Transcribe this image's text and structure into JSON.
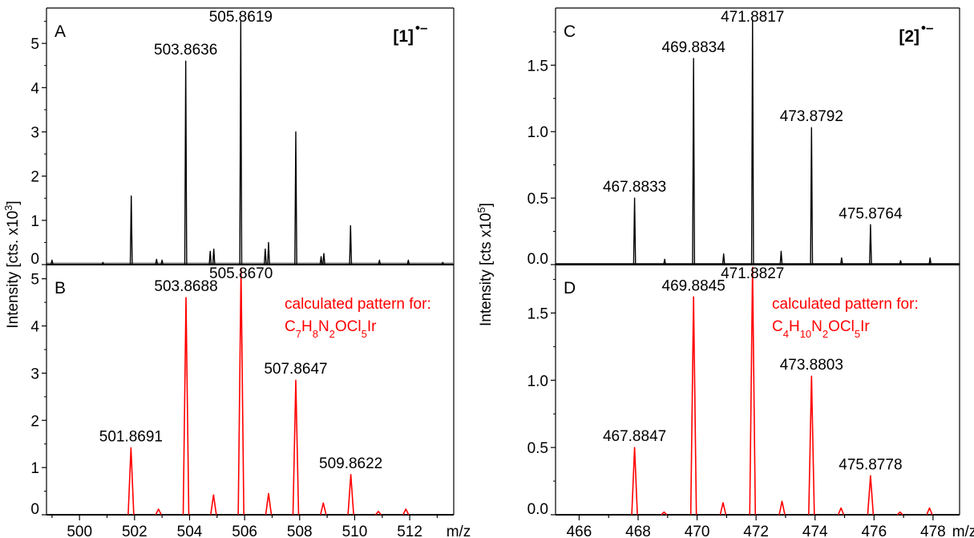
{
  "chart_data": [
    {
      "panel": "A",
      "type": "line",
      "color": "#000000",
      "ylabel_shared": "Intensity [cts. x10",
      "ylabel_exp": "3",
      "ylabel_close": "]",
      "ylim": [
        0,
        5.8
      ],
      "yticks": [
        "0",
        "1",
        "2",
        "3",
        "4",
        "5"
      ],
      "xlim": [
        498.8,
        513.6
      ],
      "species_label": "[1]",
      "species_sup": "•–",
      "peaks": [
        {
          "x": 499.0,
          "y": 0.1
        },
        {
          "x": 500.85,
          "y": 0.05
        },
        {
          "x": 501.88,
          "y": 1.55
        },
        {
          "x": 502.8,
          "y": 0.12
        },
        {
          "x": 503.0,
          "y": 0.1
        },
        {
          "x": 503.86,
          "y": 4.6
        },
        {
          "x": 504.75,
          "y": 0.3
        },
        {
          "x": 504.88,
          "y": 0.35
        },
        {
          "x": 505.86,
          "y": 5.5
        },
        {
          "x": 506.75,
          "y": 0.35
        },
        {
          "x": 506.87,
          "y": 0.5
        },
        {
          "x": 507.86,
          "y": 3.0
        },
        {
          "x": 508.78,
          "y": 0.18
        },
        {
          "x": 508.88,
          "y": 0.25
        },
        {
          "x": 509.85,
          "y": 0.88
        },
        {
          "x": 510.9,
          "y": 0.1
        },
        {
          "x": 511.95,
          "y": 0.1
        },
        {
          "x": 513.2,
          "y": 0.05
        }
      ],
      "labels": [
        {
          "x": 503.86,
          "y": 4.6,
          "text": "503.8636"
        },
        {
          "x": 505.86,
          "y": 5.5,
          "text": "505.8619"
        }
      ]
    },
    {
      "panel": "B",
      "type": "line",
      "color": "#ff0000",
      "ylim": [
        0,
        5.3
      ],
      "yticks": [
        "0",
        "1",
        "2",
        "3",
        "4",
        "5"
      ],
      "xlim": [
        498.8,
        513.6
      ],
      "xticks": [
        "500",
        "502",
        "504",
        "506",
        "508",
        "510",
        "512"
      ],
      "xunit": "m/z",
      "annotation_line1": "calculated pattern for:",
      "formula": [
        {
          "t": "C"
        },
        {
          "t": "7",
          "sub": true
        },
        {
          "t": "H"
        },
        {
          "t": "8",
          "sub": true
        },
        {
          "t": "N"
        },
        {
          "t": "2",
          "sub": true
        },
        {
          "t": "OCl"
        },
        {
          "t": "5",
          "sub": true
        },
        {
          "t": "Ir"
        }
      ],
      "peaks": [
        {
          "x": 501.87,
          "y": 1.42
        },
        {
          "x": 502.87,
          "y": 0.12
        },
        {
          "x": 503.87,
          "y": 4.6
        },
        {
          "x": 504.87,
          "y": 0.42
        },
        {
          "x": 505.87,
          "y": 5.22
        },
        {
          "x": 506.87,
          "y": 0.45
        },
        {
          "x": 507.86,
          "y": 2.85
        },
        {
          "x": 508.86,
          "y": 0.25
        },
        {
          "x": 509.86,
          "y": 0.85
        },
        {
          "x": 510.86,
          "y": 0.07
        },
        {
          "x": 511.86,
          "y": 0.12
        }
      ],
      "labels": [
        {
          "x": 501.87,
          "y": 1.42,
          "text": "501.8691"
        },
        {
          "x": 503.87,
          "y": 4.6,
          "text": "503.8688"
        },
        {
          "x": 505.87,
          "y": 5.22,
          "text": "505.8670"
        },
        {
          "x": 507.86,
          "y": 2.85,
          "text": "507.8647"
        },
        {
          "x": 509.86,
          "y": 0.85,
          "text": "509.8622"
        }
      ]
    },
    {
      "panel": "C",
      "type": "line",
      "color": "#000000",
      "ylabel_shared": "Intensity [cts x10",
      "ylabel_exp": "5",
      "ylabel_close": "]",
      "ylim": [
        0,
        1.93
      ],
      "yticks": [
        "0.0",
        "0.5",
        "1.0",
        "1.5"
      ],
      "xlim": [
        465.2,
        478.9
      ],
      "species_label": "[2]",
      "species_sup": "•–",
      "peaks": [
        {
          "x": 467.88,
          "y": 0.5
        },
        {
          "x": 468.9,
          "y": 0.04
        },
        {
          "x": 469.88,
          "y": 1.55
        },
        {
          "x": 470.9,
          "y": 0.08
        },
        {
          "x": 471.88,
          "y": 1.84
        },
        {
          "x": 472.85,
          "y": 0.1
        },
        {
          "x": 473.88,
          "y": 1.03
        },
        {
          "x": 474.9,
          "y": 0.05
        },
        {
          "x": 475.88,
          "y": 0.3
        },
        {
          "x": 476.9,
          "y": 0.03
        },
        {
          "x": 477.9,
          "y": 0.05
        }
      ],
      "labels": [
        {
          "x": 467.88,
          "y": 0.5,
          "text": "467.8833"
        },
        {
          "x": 469.88,
          "y": 1.55,
          "text": "469.8834"
        },
        {
          "x": 471.88,
          "y": 1.84,
          "text": "471.8817"
        },
        {
          "x": 473.88,
          "y": 1.03,
          "text": "473.8792"
        },
        {
          "x": 475.88,
          "y": 0.3,
          "text": "475.8764"
        }
      ]
    },
    {
      "panel": "D",
      "type": "line",
      "color": "#ff0000",
      "ylim": [
        0,
        1.86
      ],
      "yticks": [
        "0.0",
        "0.5",
        "1.0",
        "1.5"
      ],
      "xlim": [
        465.2,
        478.9
      ],
      "xticks": [
        "466",
        "468",
        "470",
        "472",
        "474",
        "476",
        "478"
      ],
      "xunit": "m/z",
      "annotation_line1": "calculated pattern for:",
      "formula": [
        {
          "t": "C"
        },
        {
          "t": "4",
          "sub": true
        },
        {
          "t": "H"
        },
        {
          "t": "10",
          "sub": true
        },
        {
          "t": "N"
        },
        {
          "t": "2",
          "sub": true
        },
        {
          "t": "OCl"
        },
        {
          "t": "5",
          "sub": true
        },
        {
          "t": "Ir"
        }
      ],
      "peaks": [
        {
          "x": 467.88,
          "y": 0.5
        },
        {
          "x": 468.88,
          "y": 0.02
        },
        {
          "x": 469.88,
          "y": 1.62
        },
        {
          "x": 470.88,
          "y": 0.09
        },
        {
          "x": 471.88,
          "y": 1.84
        },
        {
          "x": 472.88,
          "y": 0.1
        },
        {
          "x": 473.88,
          "y": 1.03
        },
        {
          "x": 474.88,
          "y": 0.05
        },
        {
          "x": 475.88,
          "y": 0.29
        },
        {
          "x": 476.88,
          "y": 0.02
        },
        {
          "x": 477.88,
          "y": 0.05
        }
      ],
      "labels": [
        {
          "x": 467.88,
          "y": 0.5,
          "text": "467.8847"
        },
        {
          "x": 469.88,
          "y": 1.62,
          "text": "469.8845"
        },
        {
          "x": 471.88,
          "y": 1.84,
          "text": "471.8827"
        },
        {
          "x": 473.88,
          "y": 1.03,
          "text": "473.8803"
        },
        {
          "x": 475.88,
          "y": 0.29,
          "text": "475.8778"
        }
      ]
    }
  ]
}
